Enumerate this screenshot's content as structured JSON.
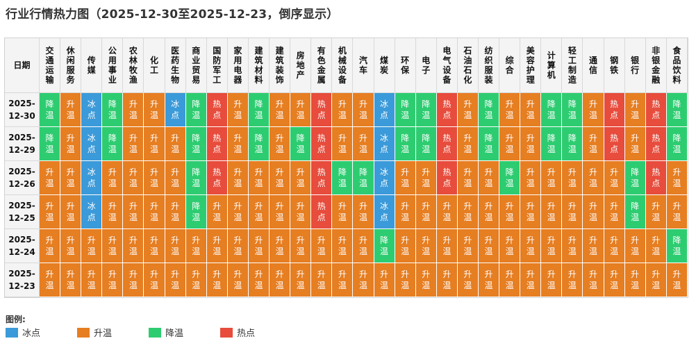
{
  "title": "行业行情热力图（2025-12-30至2025-12-23，倒序显示）",
  "chart_data": {
    "type": "heatmap",
    "corner_label": "日期",
    "columns": [
      "交通运输",
      "休闲服务",
      "传媒",
      "公用事业",
      "农林牧渔",
      "化工",
      "医药生物",
      "商业贸易",
      "国防军工",
      "家用电器",
      "建筑材料",
      "建筑装饰",
      "房地产",
      "有色金属",
      "机械设备",
      "汽车",
      "煤炭",
      "环保",
      "电子",
      "电气设备",
      "石油石化",
      "纺织服装",
      "综合",
      "美容护理",
      "计算机",
      "轻工制造",
      "通信",
      "钢铁",
      "银行",
      "非银金融",
      "食品饮料"
    ],
    "rows": [
      {
        "date": "2025-12-30",
        "values": [
          "降温",
          "升温",
          "冰点",
          "降温",
          "升温",
          "升温",
          "冰点",
          "降温",
          "热点",
          "升温",
          "降温",
          "升温",
          "升温",
          "热点",
          "升温",
          "升温",
          "冰点",
          "降温",
          "降温",
          "热点",
          "升温",
          "降温",
          "升温",
          "升温",
          "降温",
          "降温",
          "升温",
          "热点",
          "升温",
          "热点",
          "降温"
        ]
      },
      {
        "date": "2025-12-29",
        "values": [
          "降温",
          "升温",
          "冰点",
          "降温",
          "升温",
          "升温",
          "升温",
          "降温",
          "热点",
          "升温",
          "降温",
          "升温",
          "降温",
          "热点",
          "升温",
          "升温",
          "冰点",
          "降温",
          "降温",
          "热点",
          "升温",
          "降温",
          "升温",
          "升温",
          "降温",
          "降温",
          "升温",
          "热点",
          "升温",
          "热点",
          "降温"
        ]
      },
      {
        "date": "2025-12-26",
        "values": [
          "升温",
          "升温",
          "冰点",
          "升温",
          "升温",
          "升温",
          "升温",
          "降温",
          "热点",
          "升温",
          "升温",
          "升温",
          "升温",
          "热点",
          "降温",
          "降温",
          "冰点",
          "升温",
          "升温",
          "热点",
          "升温",
          "升温",
          "降温",
          "升温",
          "升温",
          "升温",
          "升温",
          "升温",
          "降温",
          "热点",
          "升温"
        ]
      },
      {
        "date": "2025-12-25",
        "values": [
          "升温",
          "升温",
          "冰点",
          "升温",
          "升温",
          "升温",
          "升温",
          "降温",
          "升温",
          "升温",
          "升温",
          "升温",
          "升温",
          "热点",
          "升温",
          "升温",
          "冰点",
          "升温",
          "升温",
          "升温",
          "升温",
          "升温",
          "升温",
          "升温",
          "升温",
          "升温",
          "升温",
          "升温",
          "降温",
          "升温",
          "升温"
        ]
      },
      {
        "date": "2025-12-24",
        "values": [
          "升温",
          "升温",
          "升温",
          "升温",
          "升温",
          "升温",
          "升温",
          "升温",
          "升温",
          "升温",
          "升温",
          "升温",
          "升温",
          "升温",
          "升温",
          "升温",
          "降温",
          "升温",
          "升温",
          "升温",
          "升温",
          "升温",
          "升温",
          "升温",
          "升温",
          "升温",
          "升温",
          "升温",
          "升温",
          "升温",
          "降温"
        ]
      },
      {
        "date": "2025-12-23",
        "values": [
          "升温",
          "升温",
          "升温",
          "升温",
          "升温",
          "升温",
          "升温",
          "升温",
          "升温",
          "升温",
          "升温",
          "升温",
          "升温",
          "升温",
          "升温",
          "升温",
          "升温",
          "升温",
          "升温",
          "升温",
          "升温",
          "升温",
          "升温",
          "升温",
          "升温",
          "升温",
          "升温",
          "升温",
          "升温",
          "升温",
          "升温"
        ]
      }
    ],
    "legend_title": "图例:",
    "legend": [
      {
        "label": "冰点",
        "color": "#3b9ad9"
      },
      {
        "label": "升温",
        "color": "#e67e22"
      },
      {
        "label": "降温",
        "color": "#2ecc71"
      },
      {
        "label": "热点",
        "color": "#e74c3c"
      }
    ]
  }
}
